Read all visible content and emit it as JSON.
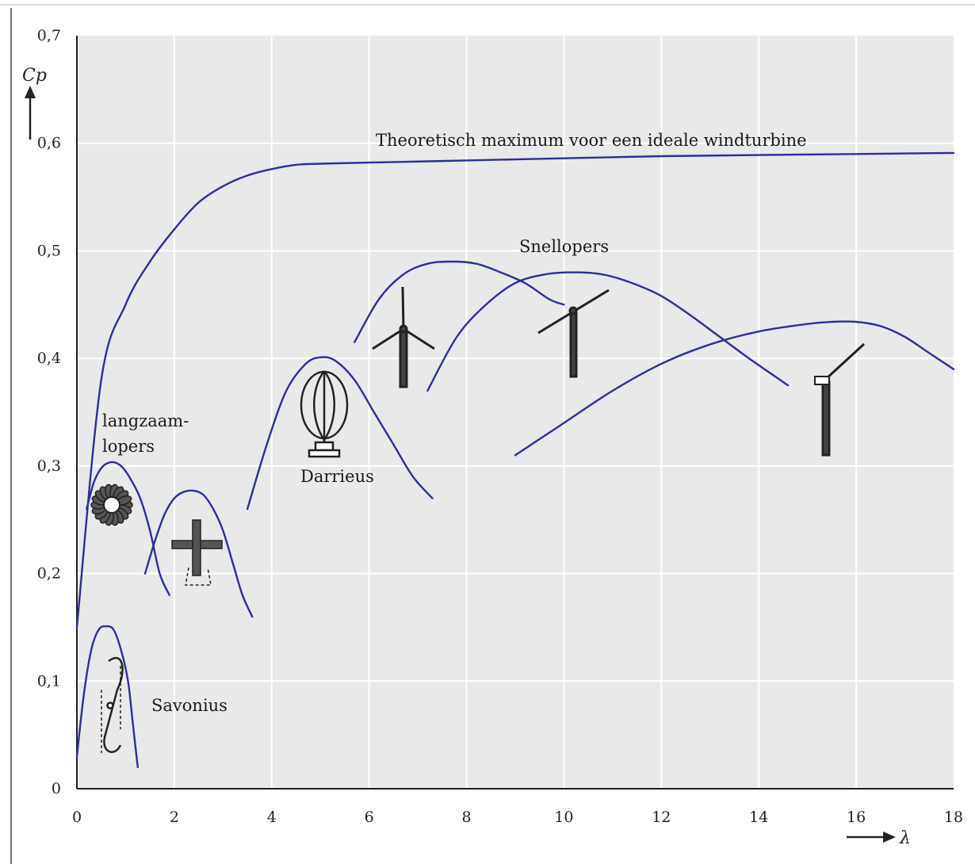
{
  "chart_data": {
    "type": "line",
    "xlabel": "λ",
    "ylabel": "Cp",
    "xlim": [
      0,
      18
    ],
    "ylim": [
      0,
      0.7
    ],
    "x_ticks": [
      "0",
      "2",
      "4",
      "6",
      "8",
      "10",
      "12",
      "14",
      "16",
      "18"
    ],
    "y_ticks": [
      "0",
      "0,1",
      "0,2",
      "0,3",
      "0,4",
      "0,5",
      "0,6",
      "0,7"
    ],
    "grid": true,
    "colors": {
      "curve": "#2b2f9a",
      "plot_bg": "#e9e9e9",
      "axis": "#222222"
    },
    "series": [
      {
        "key": "ideal",
        "x": [
          0,
          0.5,
          1,
          1.5,
          2,
          2.5,
          3,
          3.5,
          4,
          4.5,
          5,
          6,
          8,
          10,
          12,
          14,
          16,
          18
        ],
        "y": [
          0.15,
          0.38,
          0.45,
          0.49,
          0.52,
          0.545,
          0.56,
          0.57,
          0.576,
          0.58,
          0.581,
          0.582,
          0.584,
          0.586,
          0.588,
          0.589,
          0.59,
          0.591
        ]
      },
      {
        "key": "savonius",
        "x": [
          0,
          0.15,
          0.3,
          0.45,
          0.6,
          0.75,
          0.9,
          1.05,
          1.15,
          1.25
        ],
        "y": [
          0.03,
          0.09,
          0.13,
          0.148,
          0.151,
          0.148,
          0.13,
          0.1,
          0.06,
          0.02
        ]
      },
      {
        "key": "multiblade",
        "x": [
          0.2,
          0.35,
          0.5,
          0.65,
          0.8,
          0.95,
          1.1,
          1.3,
          1.5,
          1.7,
          1.9
        ],
        "y": [
          0.26,
          0.285,
          0.298,
          0.303,
          0.303,
          0.298,
          0.288,
          0.27,
          0.24,
          0.2,
          0.18
        ]
      },
      {
        "key": "cross-rotor",
        "x": [
          1.4,
          1.6,
          1.8,
          2.0,
          2.2,
          2.4,
          2.6,
          2.8,
          3.0,
          3.2,
          3.4,
          3.6
        ],
        "y": [
          0.2,
          0.23,
          0.255,
          0.27,
          0.276,
          0.277,
          0.273,
          0.26,
          0.24,
          0.21,
          0.18,
          0.16
        ]
      },
      {
        "key": "darrieus",
        "x": [
          3.5,
          3.9,
          4.3,
          4.7,
          5.0,
          5.3,
          5.7,
          6.1,
          6.5,
          6.9,
          7.3
        ],
        "y": [
          0.26,
          0.32,
          0.37,
          0.395,
          0.401,
          0.398,
          0.38,
          0.35,
          0.32,
          0.29,
          0.27
        ]
      },
      {
        "key": "three-blade",
        "x": [
          5.7,
          6.2,
          6.7,
          7.2,
          7.7,
          8.2,
          8.7,
          9.2,
          9.7,
          10.0
        ],
        "y": [
          0.415,
          0.455,
          0.478,
          0.488,
          0.49,
          0.488,
          0.48,
          0.47,
          0.455,
          0.45
        ]
      },
      {
        "key": "two-blade",
        "x": [
          7.2,
          7.8,
          8.4,
          9.0,
          9.6,
          10.2,
          10.8,
          11.4,
          12.0,
          12.6,
          13.2,
          13.8,
          14.6
        ],
        "y": [
          0.37,
          0.42,
          0.45,
          0.47,
          0.478,
          0.48,
          0.478,
          0.47,
          0.458,
          0.44,
          0.42,
          0.4,
          0.375
        ]
      },
      {
        "key": "one-blade",
        "x": [
          9.0,
          10.0,
          11.0,
          12.0,
          13.0,
          14.0,
          15.0,
          15.5,
          16.0,
          16.5,
          17.0,
          17.5,
          18.0
        ],
        "y": [
          0.31,
          0.34,
          0.37,
          0.395,
          0.413,
          0.425,
          0.432,
          0.434,
          0.434,
          0.43,
          0.42,
          0.405,
          0.39
        ]
      }
    ],
    "annotations": [
      {
        "key": "ideal",
        "text": "Theoretisch maximum voor een ideale windturbine"
      },
      {
        "key": "snellopers",
        "text": "Snellopers"
      },
      {
        "key": "langzaam1",
        "text": "langzaam-"
      },
      {
        "key": "langzaam2",
        "text": "lopers"
      },
      {
        "key": "darrieus",
        "text": "Darrieus"
      },
      {
        "key": "savonius",
        "text": "Savonius"
      }
    ],
    "icons": [
      "savonius-rotor-icon",
      "multiblade-rotor-icon",
      "cross-rotor-icon",
      "darrieus-rotor-icon",
      "three-blade-turbine-icon",
      "two-blade-turbine-icon",
      "one-blade-turbine-icon"
    ]
  }
}
